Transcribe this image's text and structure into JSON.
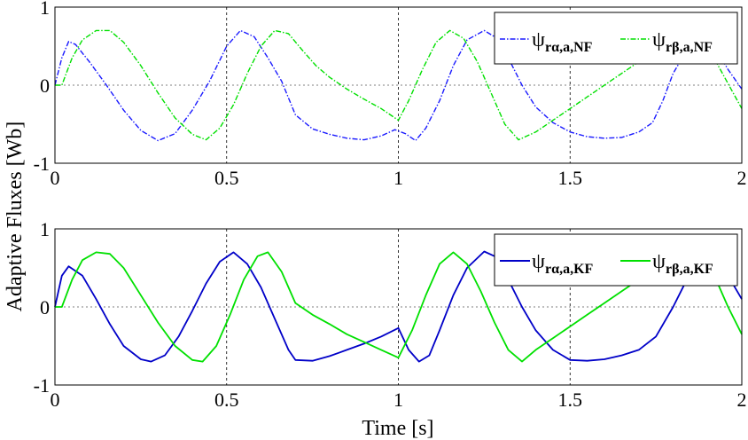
{
  "chart_data": {
    "ylabel": "Adaptive Fluxes [Wb]",
    "xlabel": "Time [s]",
    "panels": [
      {
        "type": "line",
        "xlim": [
          0,
          2
        ],
        "ylim": [
          -1,
          1
        ],
        "xticks": [
          "0",
          "0.5",
          "1",
          "1.5",
          "2"
        ],
        "yticks": [
          "1",
          "0",
          "-1"
        ],
        "grid": true,
        "legend_position": "top-right",
        "series": [
          {
            "name": "ψrα,a,NF",
            "name_main": "ψ",
            "name_sub": "rα,a,NF",
            "color": "#1a1aff",
            "style": "dashdot",
            "points": [
              [
                0,
                0
              ],
              [
                0.02,
                0.35
              ],
              [
                0.04,
                0.56
              ],
              [
                0.06,
                0.52
              ],
              [
                0.1,
                0.3
              ],
              [
                0.15,
                0.0
              ],
              [
                0.2,
                -0.32
              ],
              [
                0.25,
                -0.58
              ],
              [
                0.3,
                -0.71
              ],
              [
                0.35,
                -0.62
              ],
              [
                0.4,
                -0.32
              ],
              [
                0.45,
                0.05
              ],
              [
                0.5,
                0.5
              ],
              [
                0.54,
                0.7
              ],
              [
                0.58,
                0.62
              ],
              [
                0.62,
                0.35
              ],
              [
                0.66,
                0.05
              ],
              [
                0.7,
                -0.38
              ],
              [
                0.75,
                -0.56
              ],
              [
                0.8,
                -0.63
              ],
              [
                0.85,
                -0.68
              ],
              [
                0.9,
                -0.7
              ],
              [
                0.95,
                -0.65
              ],
              [
                0.99,
                -0.57
              ],
              [
                1.02,
                -0.62
              ],
              [
                1.05,
                -0.71
              ],
              [
                1.08,
                -0.55
              ],
              [
                1.12,
                -0.2
              ],
              [
                1.16,
                0.25
              ],
              [
                1.2,
                0.58
              ],
              [
                1.25,
                0.7
              ],
              [
                1.28,
                0.62
              ],
              [
                1.32,
                0.35
              ],
              [
                1.36,
                0.0
              ],
              [
                1.4,
                -0.28
              ],
              [
                1.45,
                -0.48
              ],
              [
                1.5,
                -0.6
              ],
              [
                1.55,
                -0.66
              ],
              [
                1.6,
                -0.68
              ],
              [
                1.65,
                -0.67
              ],
              [
                1.7,
                -0.6
              ],
              [
                1.74,
                -0.48
              ],
              [
                1.77,
                -0.2
              ],
              [
                1.8,
                0.15
              ],
              [
                1.84,
                0.45
              ],
              [
                1.88,
                0.66
              ],
              [
                1.92,
                0.5
              ],
              [
                1.96,
                0.2
              ],
              [
                2.0,
                -0.05
              ]
            ]
          },
          {
            "name": "ψrβ,a,NF",
            "name_main": "ψ",
            "name_sub": "rβ,a,NF",
            "color": "#00e000",
            "style": "dashdot",
            "points": [
              [
                0,
                0
              ],
              [
                0.02,
                0
              ],
              [
                0.05,
                0.35
              ],
              [
                0.08,
                0.58
              ],
              [
                0.12,
                0.7
              ],
              [
                0.16,
                0.7
              ],
              [
                0.2,
                0.55
              ],
              [
                0.25,
                0.25
              ],
              [
                0.3,
                -0.1
              ],
              [
                0.35,
                -0.42
              ],
              [
                0.4,
                -0.63
              ],
              [
                0.44,
                -0.7
              ],
              [
                0.48,
                -0.55
              ],
              [
                0.52,
                -0.25
              ],
              [
                0.56,
                0.15
              ],
              [
                0.6,
                0.5
              ],
              [
                0.64,
                0.7
              ],
              [
                0.68,
                0.66
              ],
              [
                0.72,
                0.45
              ],
              [
                0.76,
                0.25
              ],
              [
                0.8,
                0.1
              ],
              [
                0.85,
                -0.05
              ],
              [
                0.9,
                -0.18
              ],
              [
                0.95,
                -0.3
              ],
              [
                1.0,
                -0.45
              ],
              [
                1.03,
                -0.2
              ],
              [
                1.07,
                0.2
              ],
              [
                1.11,
                0.55
              ],
              [
                1.15,
                0.7
              ],
              [
                1.19,
                0.6
              ],
              [
                1.23,
                0.3
              ],
              [
                1.27,
                -0.1
              ],
              [
                1.31,
                -0.5
              ],
              [
                1.35,
                -0.7
              ],
              [
                1.4,
                -0.6
              ],
              [
                1.45,
                -0.45
              ],
              [
                1.5,
                -0.3
              ],
              [
                1.55,
                -0.15
              ],
              [
                1.6,
                0.0
              ],
              [
                1.65,
                0.15
              ],
              [
                1.7,
                0.3
              ],
              [
                1.75,
                0.45
              ],
              [
                1.8,
                0.55
              ],
              [
                1.85,
                0.68
              ],
              [
                1.9,
                0.5
              ],
              [
                1.95,
                0.1
              ],
              [
                2.0,
                -0.3
              ]
            ]
          }
        ]
      },
      {
        "type": "line",
        "xlim": [
          0,
          2
        ],
        "ylim": [
          -1,
          1
        ],
        "xticks": [
          "0",
          "0.5",
          "1",
          "1.5",
          "2"
        ],
        "yticks": [
          "1",
          "0",
          "-1"
        ],
        "grid": true,
        "legend_position": "top-right",
        "series": [
          {
            "name": "ψrα,a,KF",
            "name_main": "ψ",
            "name_sub": "rα,a,KF",
            "color": "#0000c8",
            "style": "solid",
            "points": [
              [
                0,
                0
              ],
              [
                0.02,
                0.4
              ],
              [
                0.04,
                0.52
              ],
              [
                0.08,
                0.4
              ],
              [
                0.12,
                0.1
              ],
              [
                0.16,
                -0.22
              ],
              [
                0.2,
                -0.5
              ],
              [
                0.25,
                -0.67
              ],
              [
                0.28,
                -0.7
              ],
              [
                0.32,
                -0.62
              ],
              [
                0.36,
                -0.38
              ],
              [
                0.4,
                -0.05
              ],
              [
                0.44,
                0.3
              ],
              [
                0.48,
                0.58
              ],
              [
                0.52,
                0.7
              ],
              [
                0.56,
                0.55
              ],
              [
                0.6,
                0.25
              ],
              [
                0.64,
                -0.15
              ],
              [
                0.68,
                -0.55
              ],
              [
                0.7,
                -0.68
              ],
              [
                0.75,
                -0.69
              ],
              [
                0.8,
                -0.63
              ],
              [
                0.85,
                -0.55
              ],
              [
                0.9,
                -0.47
              ],
              [
                0.95,
                -0.38
              ],
              [
                1.0,
                -0.27
              ],
              [
                1.03,
                -0.55
              ],
              [
                1.06,
                -0.7
              ],
              [
                1.09,
                -0.62
              ],
              [
                1.12,
                -0.3
              ],
              [
                1.16,
                0.15
              ],
              [
                1.2,
                0.5
              ],
              [
                1.25,
                0.71
              ],
              [
                1.28,
                0.65
              ],
              [
                1.32,
                0.35
              ],
              [
                1.36,
                0.0
              ],
              [
                1.4,
                -0.3
              ],
              [
                1.45,
                -0.55
              ],
              [
                1.5,
                -0.68
              ],
              [
                1.55,
                -0.69
              ],
              [
                1.6,
                -0.67
              ],
              [
                1.65,
                -0.62
              ],
              [
                1.7,
                -0.55
              ],
              [
                1.75,
                -0.38
              ],
              [
                1.8,
                0.0
              ],
              [
                1.84,
                0.35
              ],
              [
                1.88,
                0.6
              ],
              [
                1.92,
                0.6
              ],
              [
                1.96,
                0.4
              ],
              [
                2.0,
                0.1
              ]
            ]
          },
          {
            "name": "ψrβ,a,KF",
            "name_main": "ψ",
            "name_sub": "rβ,a,KF",
            "color": "#00e000",
            "style": "solid",
            "points": [
              [
                0,
                0
              ],
              [
                0.02,
                0
              ],
              [
                0.05,
                0.35
              ],
              [
                0.08,
                0.6
              ],
              [
                0.12,
                0.7
              ],
              [
                0.16,
                0.68
              ],
              [
                0.2,
                0.5
              ],
              [
                0.25,
                0.15
              ],
              [
                0.3,
                -0.2
              ],
              [
                0.35,
                -0.5
              ],
              [
                0.4,
                -0.68
              ],
              [
                0.43,
                -0.7
              ],
              [
                0.47,
                -0.5
              ],
              [
                0.51,
                -0.1
              ],
              [
                0.55,
                0.35
              ],
              [
                0.59,
                0.65
              ],
              [
                0.62,
                0.7
              ],
              [
                0.66,
                0.45
              ],
              [
                0.7,
                0.05
              ],
              [
                0.75,
                -0.1
              ],
              [
                0.8,
                -0.22
              ],
              [
                0.85,
                -0.35
              ],
              [
                0.9,
                -0.45
              ],
              [
                0.95,
                -0.55
              ],
              [
                1.0,
                -0.65
              ],
              [
                1.04,
                -0.3
              ],
              [
                1.08,
                0.15
              ],
              [
                1.12,
                0.55
              ],
              [
                1.16,
                0.7
              ],
              [
                1.2,
                0.55
              ],
              [
                1.24,
                0.2
              ],
              [
                1.28,
                -0.2
              ],
              [
                1.32,
                -0.55
              ],
              [
                1.36,
                -0.7
              ],
              [
                1.4,
                -0.55
              ],
              [
                1.45,
                -0.4
              ],
              [
                1.5,
                -0.25
              ],
              [
                1.55,
                -0.1
              ],
              [
                1.6,
                0.05
              ],
              [
                1.65,
                0.2
              ],
              [
                1.7,
                0.35
              ],
              [
                1.75,
                0.5
              ],
              [
                1.8,
                0.6
              ],
              [
                1.85,
                0.65
              ],
              [
                1.88,
                0.65
              ],
              [
                1.92,
                0.4
              ],
              [
                1.96,
                0.0
              ],
              [
                2.0,
                -0.35
              ]
            ]
          }
        ]
      }
    ]
  }
}
